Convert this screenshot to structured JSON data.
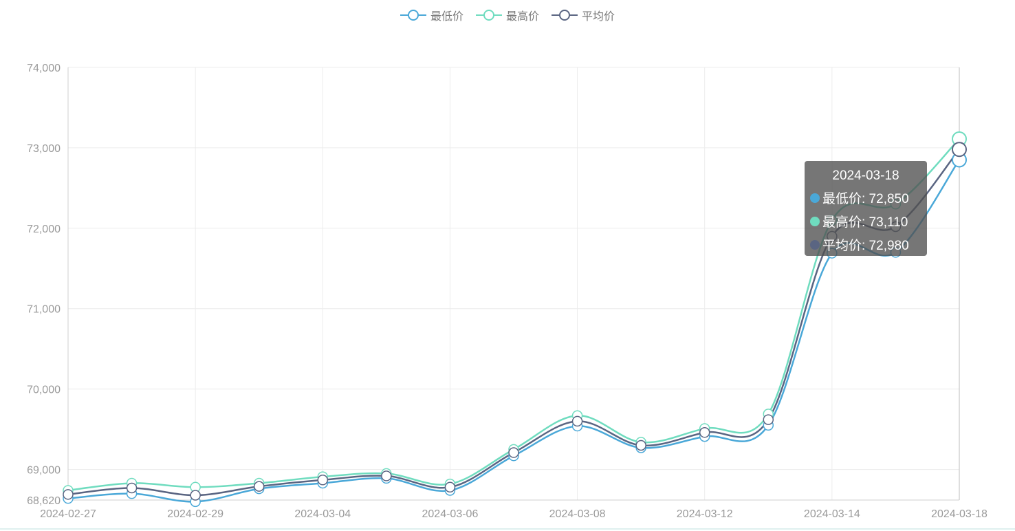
{
  "legend": {
    "items": [
      {
        "label": "最低价",
        "color": "#4aa8d8"
      },
      {
        "label": "最高价",
        "color": "#6fdcbf"
      },
      {
        "label": "平均价",
        "color": "#5a6582"
      }
    ]
  },
  "tooltip": {
    "date": "2024-03-18",
    "rows": [
      {
        "label": "最低价: 72,850",
        "color": "#4aa8d8"
      },
      {
        "label": "最高价: 73,110",
        "color": "#6fdcbf"
      },
      {
        "label": "平均价: 72,980",
        "color": "#5a6582"
      }
    ]
  },
  "chart_data": {
    "type": "line",
    "smooth": true,
    "x": [
      "2024-02-27",
      "2024-02-28",
      "2024-02-29",
      "2024-03-01",
      "2024-03-04",
      "2024-03-05",
      "2024-03-06",
      "2024-03-07",
      "2024-03-08",
      "2024-03-11",
      "2024-03-12",
      "2024-03-13",
      "2024-03-14",
      "2024-03-15",
      "2024-03-18"
    ],
    "x_tick_labels": [
      "2024-02-27",
      "",
      "2024-02-29",
      "",
      "2024-03-04",
      "",
      "2024-03-06",
      "",
      "2024-03-08",
      "",
      "2024-03-12",
      "",
      "2024-03-14",
      "",
      "2024-03-18"
    ],
    "y_ticks": [
      68620,
      69000,
      70000,
      71000,
      72000,
      73000,
      74000
    ],
    "y_tick_labels": [
      "68,620",
      "69,000",
      "70,000",
      "71,000",
      "72,000",
      "73,000",
      "74,000"
    ],
    "ylim": [
      68620,
      74000
    ],
    "grid": true,
    "legend_position": "top-center",
    "highlight_index": 14,
    "series": [
      {
        "name": "最低价",
        "color": "#4aa8d8",
        "values": [
          68640,
          68700,
          68600,
          68760,
          68830,
          68890,
          68740,
          69170,
          69540,
          69270,
          69410,
          69550,
          71690,
          71700,
          72850
        ]
      },
      {
        "name": "最高价",
        "color": "#6fdcbf",
        "values": [
          68740,
          68830,
          68780,
          68830,
          68910,
          68950,
          68820,
          69250,
          69670,
          69340,
          69510,
          69690,
          72100,
          72300,
          73110
        ]
      },
      {
        "name": "平均价",
        "color": "#5a6582",
        "values": [
          68690,
          68770,
          68680,
          68790,
          68870,
          68920,
          68780,
          69210,
          69600,
          69300,
          69460,
          69620,
          71900,
          72020,
          72980
        ]
      }
    ]
  }
}
